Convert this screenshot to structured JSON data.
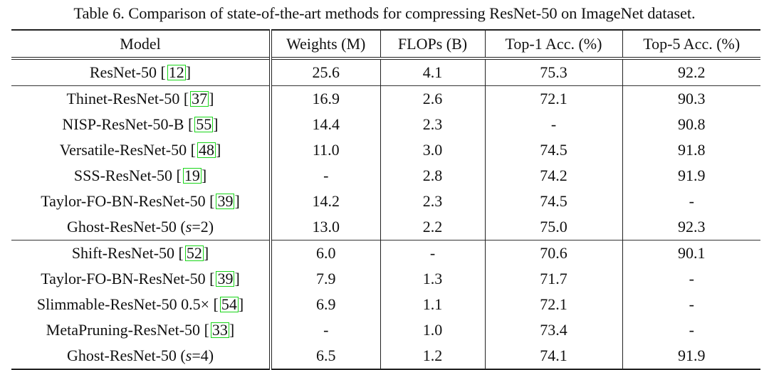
{
  "caption": "Table 6. Comparison of state-of-the-art methods for compressing ResNet-50 on ImageNet dataset.",
  "headers": {
    "model": "Model",
    "weights": "Weights (M)",
    "flops": "FLOPs (B)",
    "top1": "Top-1 Acc. (%)",
    "top5": "Top-5 Acc. (%)"
  },
  "rows": [
    {
      "name": "ResNet-50 ",
      "ref": "12",
      "suffix": "",
      "weights": "25.6",
      "flops": "4.1",
      "top1": "75.3",
      "top5": "92.2"
    },
    {
      "name": "Thinet-ResNet-50 ",
      "ref": "37",
      "suffix": "",
      "weights": "16.9",
      "flops": "2.6",
      "top1": "72.1",
      "top5": "90.3"
    },
    {
      "name": "NISP-ResNet-50-B ",
      "ref": "55",
      "suffix": "",
      "weights": "14.4",
      "flops": "2.3",
      "top1": "-",
      "top5": "90.8"
    },
    {
      "name": "Versatile-ResNet-50 ",
      "ref": "48",
      "suffix": "",
      "weights": "11.0",
      "flops": "3.0",
      "top1": "74.5",
      "top5": "91.8"
    },
    {
      "name": "SSS-ResNet-50 ",
      "ref": "19",
      "suffix": "",
      "weights": "-",
      "flops": "2.8",
      "top1": "74.2",
      "top5": "91.9"
    },
    {
      "name": "Taylor-FO-BN-ResNet-50 ",
      "ref": "39",
      "suffix": "",
      "weights": "14.2",
      "flops": "2.3",
      "top1": "74.5",
      "top5": "-"
    },
    {
      "name": "Ghost-ResNet-50 (",
      "var": "s",
      "varval": "=2)",
      "weights": "13.0",
      "flops": "2.2",
      "top1": "75.0",
      "top5": "92.3"
    },
    {
      "name": "Shift-ResNet-50 ",
      "ref": "52",
      "suffix": "",
      "weights": "6.0",
      "flops": "-",
      "top1": "70.6",
      "top5": "90.1"
    },
    {
      "name": "Taylor-FO-BN-ResNet-50 ",
      "ref": "39",
      "suffix": "",
      "weights": "7.9",
      "flops": "1.3",
      "top1": "71.7",
      "top5": "-"
    },
    {
      "name": "Slimmable-ResNet-50 0.5× ",
      "ref": "54",
      "suffix": "",
      "weights": "6.9",
      "flops": "1.1",
      "top1": "72.1",
      "top5": "-"
    },
    {
      "name": "MetaPruning-ResNet-50 ",
      "ref": "33",
      "suffix": "",
      "weights": "-",
      "flops": "1.0",
      "top1": "73.4",
      "top5": "-"
    },
    {
      "name": "Ghost-ResNet-50 (",
      "var": "s",
      "varval": "=4)",
      "weights": "6.5",
      "flops": "1.2",
      "top1": "74.1",
      "top5": "91.9"
    }
  ]
}
